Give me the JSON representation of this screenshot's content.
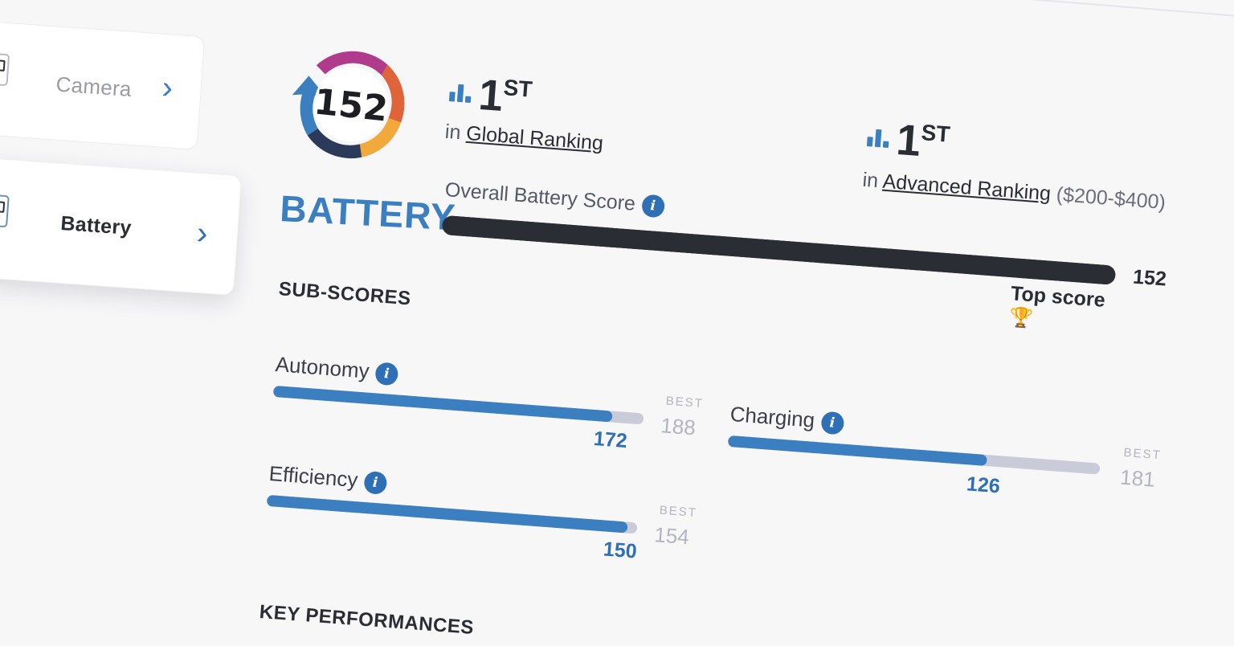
{
  "sidebar": {
    "items": [
      {
        "label": "Camera",
        "icon": "camera-icon"
      },
      {
        "label": "Battery",
        "icon": "battery-icon"
      }
    ]
  },
  "badge": {
    "score": "152",
    "title": "BATTERY",
    "colors": [
      "#b03a8c",
      "#e07a3a",
      "#f2a93b",
      "#3b7fc1",
      "#2b3a5a"
    ]
  },
  "global_rank": {
    "number": "1",
    "suffix": "ST",
    "prefix": "in",
    "link": "Global Ranking"
  },
  "advanced_rank": {
    "number": "1",
    "suffix": "ST",
    "prefix": "in",
    "link": "Advanced Ranking",
    "range": "($200-$400)"
  },
  "overall": {
    "label": "Overall Battery Score",
    "value": "152",
    "fraction": 1.0,
    "top_label": "Top score"
  },
  "subscores": {
    "heading": "SUB-SCORES",
    "items": [
      {
        "key": "autonomy",
        "label": "Autonomy",
        "value": "172",
        "best_label": "BEST",
        "best": "188",
        "fraction": 0.915
      },
      {
        "key": "efficiency",
        "label": "Efficiency",
        "value": "150",
        "best_label": "BEST",
        "best": "154",
        "fraction": 0.974
      },
      {
        "key": "charging",
        "label": "Charging",
        "value": "126",
        "best_label": "BEST",
        "best": "181",
        "fraction": 0.696
      }
    ]
  },
  "key_performances": {
    "heading": "KEY PERFORMANCES"
  },
  "colors": {
    "accent": "#3b7fc1",
    "dark_bar": "#2b2d35",
    "track": "#c9cbd8",
    "trophy": "#f2b632"
  }
}
